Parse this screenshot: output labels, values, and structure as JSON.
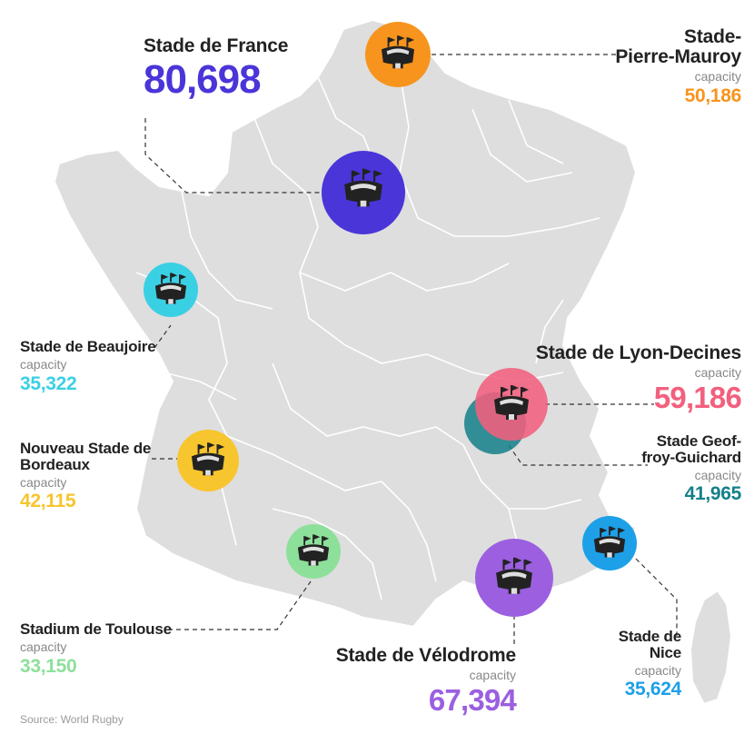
{
  "source": "Source: World Rugby",
  "capacity_word": "capacity",
  "stadiums": {
    "france": {
      "name": "Stade de France",
      "value": "80,698",
      "color": "#4a35d9"
    },
    "lille": {
      "name_line1": "Stade-",
      "name_line2": "Pierre-Mauroy",
      "value": "50,186",
      "color": "#f7941d"
    },
    "nantes": {
      "name": "Stade de Beaujoire",
      "value": "35,322",
      "color": "#3ad0e4"
    },
    "lyon": {
      "name": "Stade de Lyon-Decines",
      "value": "59,186",
      "color": "#f2607e"
    },
    "stetienne": {
      "name_line1": "Stade Geof-",
      "name_line2": "froy-Guichard",
      "value": "41,965",
      "color": "#14808a"
    },
    "bordeaux": {
      "name_line1": "Nouveau Stade de",
      "name_line2": "Bordeaux",
      "value": "42,115",
      "color": "#f7c52d"
    },
    "toulouse": {
      "name": "Stadium de Toulouse",
      "value": "33,150",
      "color": "#8de09a"
    },
    "marseille": {
      "name": "Stade de Vélodrome",
      "value": "67,394",
      "color": "#9b5fe0"
    },
    "nice": {
      "name_line1": "Stade de",
      "name_line2": "Nice",
      "value": "35,624",
      "color": "#1da0e8"
    }
  }
}
